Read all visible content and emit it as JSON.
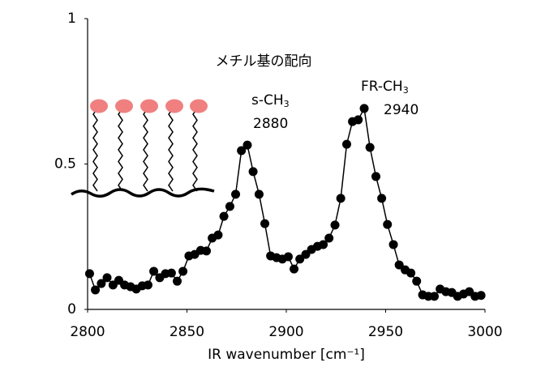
{
  "chart_data": {
    "type": "line",
    "xlabel": "IR wavenumber [cm⁻¹]",
    "annotations": [
      {
        "text": "メチル基の配向"
      },
      {
        "text": "s-CH",
        "sub": "3",
        "value": "2880"
      },
      {
        "text": "FR-CH",
        "sub": "3",
        "value": "2940"
      }
    ],
    "xlim": [
      2800,
      3000
    ],
    "xticks": [
      2800,
      2850,
      2900,
      2950,
      3000
    ],
    "ylim": [
      0,
      1
    ],
    "yticks": [
      0,
      0.5,
      1
    ],
    "series": [
      {
        "color": "#000000",
        "x": [
          2801.0,
          2803.9,
          2806.9,
          2809.8,
          2812.8,
          2815.7,
          2818.6,
          2821.6,
          2824.5,
          2827.5,
          2830.4,
          2833.3,
          2836.3,
          2839.2,
          2842.2,
          2845.1,
          2848.0,
          2851.0,
          2853.9,
          2856.9,
          2859.8,
          2862.7,
          2865.7,
          2868.6,
          2871.6,
          2874.5,
          2877.4,
          2880.4,
          2883.3,
          2886.3,
          2889.2,
          2892.1,
          2895.1,
          2898.0,
          2901.0,
          2903.9,
          2906.8,
          2909.8,
          2912.7,
          2915.7,
          2918.6,
          2921.5,
          2924.5,
          2927.4,
          2930.4,
          2933.3,
          2936.2,
          2939.2,
          2942.1,
          2945.1,
          2948.0,
          2950.9,
          2953.9,
          2956.8,
          2959.8,
          2962.7,
          2965.6,
          2968.6,
          2971.5,
          2974.5,
          2977.4,
          2980.3,
          2983.3,
          2986.2,
          2989.2,
          2992.1,
          2995.0,
          2998.0
        ],
        "values": [
          0.123,
          0.067,
          0.089,
          0.109,
          0.084,
          0.1,
          0.084,
          0.078,
          0.07,
          0.081,
          0.084,
          0.131,
          0.109,
          0.123,
          0.125,
          0.097,
          0.131,
          0.184,
          0.189,
          0.203,
          0.201,
          0.245,
          0.256,
          0.32,
          0.354,
          0.396,
          0.546,
          0.565,
          0.474,
          0.396,
          0.295,
          0.184,
          0.178,
          0.173,
          0.181,
          0.139,
          0.173,
          0.189,
          0.206,
          0.217,
          0.223,
          0.245,
          0.29,
          0.382,
          0.568,
          0.646,
          0.652,
          0.691,
          0.557,
          0.457,
          0.382,
          0.292,
          0.223,
          0.153,
          0.136,
          0.125,
          0.097,
          0.05,
          0.045,
          0.045,
          0.07,
          0.061,
          0.058,
          0.045,
          0.053,
          0.061,
          0.045,
          0.048
        ]
      }
    ]
  }
}
